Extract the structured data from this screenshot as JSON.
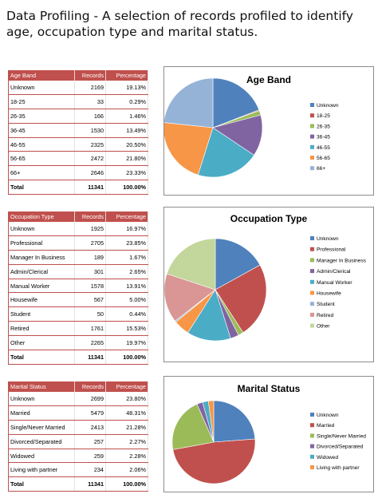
{
  "page": {
    "title": "Data Profiling - A selection of records profiled to identify age, occupation type and marital status."
  },
  "tables": [
    {
      "headers": [
        "Age Band",
        "Records",
        "Percentage"
      ],
      "rows": [
        [
          "Unknown",
          "2169",
          "19.13%"
        ],
        [
          "18-25",
          "33",
          "0.29%"
        ],
        [
          "26-35",
          "166",
          "1.46%"
        ],
        [
          "36-45",
          "1530",
          "13.49%"
        ],
        [
          "46-55",
          "2325",
          "20.50%"
        ],
        [
          "56-65",
          "2472",
          "21.80%"
        ],
        [
          "66+",
          "2646",
          "23.33%"
        ]
      ],
      "total": [
        "Total",
        "11341",
        "100.00%"
      ]
    },
    {
      "headers": [
        "Occupation Type",
        "Records",
        "Percentage"
      ],
      "rows": [
        [
          "Unknown",
          "1925",
          "16.97%"
        ],
        [
          "Professional",
          "2705",
          "23.85%"
        ],
        [
          "Manager In Business",
          "189",
          "1.67%"
        ],
        [
          "Admin/Clerical",
          "301",
          "2.65%"
        ],
        [
          "Manual Worker",
          "1578",
          "13.91%"
        ],
        [
          "Housewife",
          "567",
          "5.00%"
        ],
        [
          "Student",
          "50",
          "0.44%"
        ],
        [
          "Retired",
          "1761",
          "15.53%"
        ],
        [
          "Other",
          "2265",
          "19.97%"
        ]
      ],
      "total": [
        "Total",
        "11341",
        "100.00%"
      ]
    },
    {
      "headers": [
        "Marital Status",
        "Records",
        "Percentage"
      ],
      "rows": [
        [
          "Unknown",
          "2699",
          "23.80%"
        ],
        [
          "Married",
          "5479",
          "48.31%"
        ],
        [
          "Single/Never Married",
          "2413",
          "21.28%"
        ],
        [
          "Divorced/Separated",
          "257",
          "2.27%"
        ],
        [
          "Widowed",
          "259",
          "2.28%"
        ],
        [
          "Living with partner",
          "234",
          "2.06%"
        ]
      ],
      "total": [
        "Total",
        "11341",
        "100.00%"
      ]
    }
  ],
  "chart_data": [
    {
      "type": "pie",
      "title": "Age Band",
      "categories": [
        "Unknown",
        "18-25",
        "26-35",
        "36-45",
        "46-55",
        "56-65",
        "66+"
      ],
      "values": [
        2169,
        33,
        166,
        1530,
        2325,
        2472,
        2646
      ],
      "colors": [
        "#4f81bd",
        "#c0504d",
        "#9bbb59",
        "#8064a2",
        "#4bacc6",
        "#f79646",
        "#95b3d7"
      ],
      "legend_position": "right"
    },
    {
      "type": "pie",
      "title": "Occupation Type",
      "categories": [
        "Unknown",
        "Professional",
        "Manager In Business",
        "Admin/Clerical",
        "Manual Worker",
        "Housewife",
        "Student",
        "Retired",
        "Other"
      ],
      "values": [
        1925,
        2705,
        189,
        301,
        1578,
        567,
        50,
        1761,
        2265
      ],
      "colors": [
        "#4f81bd",
        "#c0504d",
        "#9bbb59",
        "#8064a2",
        "#4bacc6",
        "#f79646",
        "#95b3d7",
        "#d99694",
        "#c3d69b"
      ],
      "legend_position": "right"
    },
    {
      "type": "pie",
      "title": "Marital Status",
      "categories": [
        "Unknown",
        "Married",
        "Single/Never Married",
        "Divorced/Separated",
        "Widowed",
        "Living with  partner"
      ],
      "values": [
        2699,
        5479,
        2413,
        257,
        259,
        234
      ],
      "colors": [
        "#4f81bd",
        "#c0504d",
        "#9bbb59",
        "#8064a2",
        "#4bacc6",
        "#f79646"
      ],
      "legend_position": "right"
    }
  ]
}
